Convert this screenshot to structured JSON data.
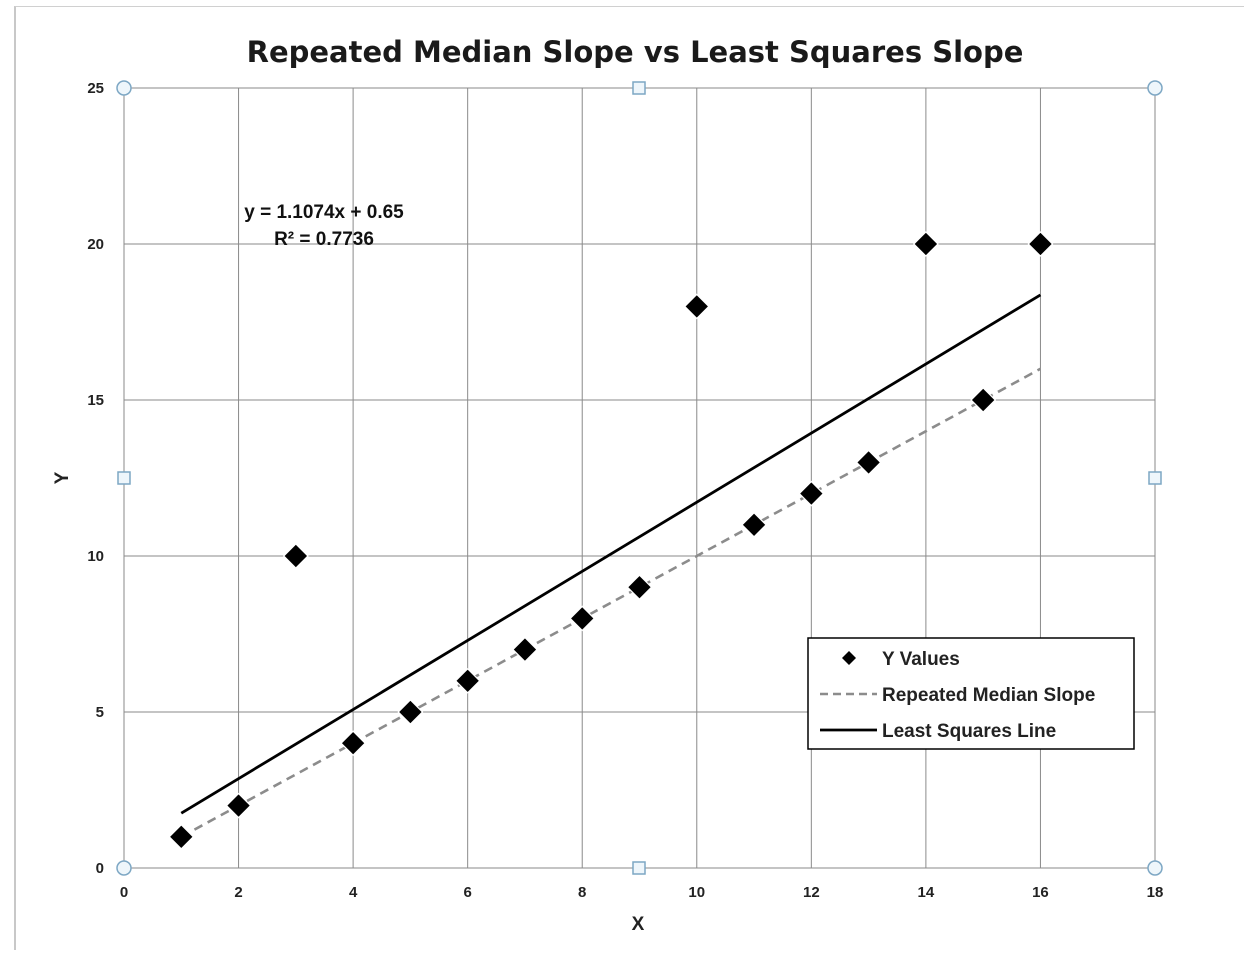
{
  "chart_data": {
    "type": "scatter",
    "title": "Repeated Median Slope vs Least Squares Slope",
    "xlabel": "X",
    "ylabel": "Y",
    "xlim": [
      0,
      18
    ],
    "ylim": [
      0,
      25
    ],
    "xticks": [
      0,
      2,
      4,
      6,
      8,
      10,
      12,
      14,
      16,
      18
    ],
    "yticks": [
      0,
      5,
      10,
      15,
      20,
      25
    ],
    "grid": true,
    "legend_position": "bottom-right",
    "series": [
      {
        "name": "Y Values",
        "kind": "scatter",
        "marker": "diamond",
        "color": "#000000",
        "points": [
          {
            "x": 1,
            "y": 1
          },
          {
            "x": 2,
            "y": 2
          },
          {
            "x": 3,
            "y": 10
          },
          {
            "x": 4,
            "y": 4
          },
          {
            "x": 5,
            "y": 5
          },
          {
            "x": 6,
            "y": 6
          },
          {
            "x": 7,
            "y": 7
          },
          {
            "x": 8,
            "y": 8
          },
          {
            "x": 9,
            "y": 9
          },
          {
            "x": 10,
            "y": 18
          },
          {
            "x": 11,
            "y": 11
          },
          {
            "x": 12,
            "y": 12
          },
          {
            "x": 13,
            "y": 13
          },
          {
            "x": 14,
            "y": 20
          },
          {
            "x": 15,
            "y": 15
          },
          {
            "x": 16,
            "y": 20
          }
        ]
      },
      {
        "name": "Repeated Median Slope",
        "kind": "line",
        "style": "dashed",
        "color": "#8c8c8c",
        "points": [
          {
            "x": 1,
            "y": 1
          },
          {
            "x": 16,
            "y": 16
          }
        ]
      },
      {
        "name": "Least Squares Line",
        "kind": "line",
        "style": "solid",
        "color": "#000000",
        "points": [
          {
            "x": 1,
            "y": 1.7574
          },
          {
            "x": 16,
            "y": 18.3684
          }
        ]
      }
    ],
    "trendline_equation": "y = 1.1074x  + 0.65",
    "trendline_r2": "R² = 0.7736"
  }
}
